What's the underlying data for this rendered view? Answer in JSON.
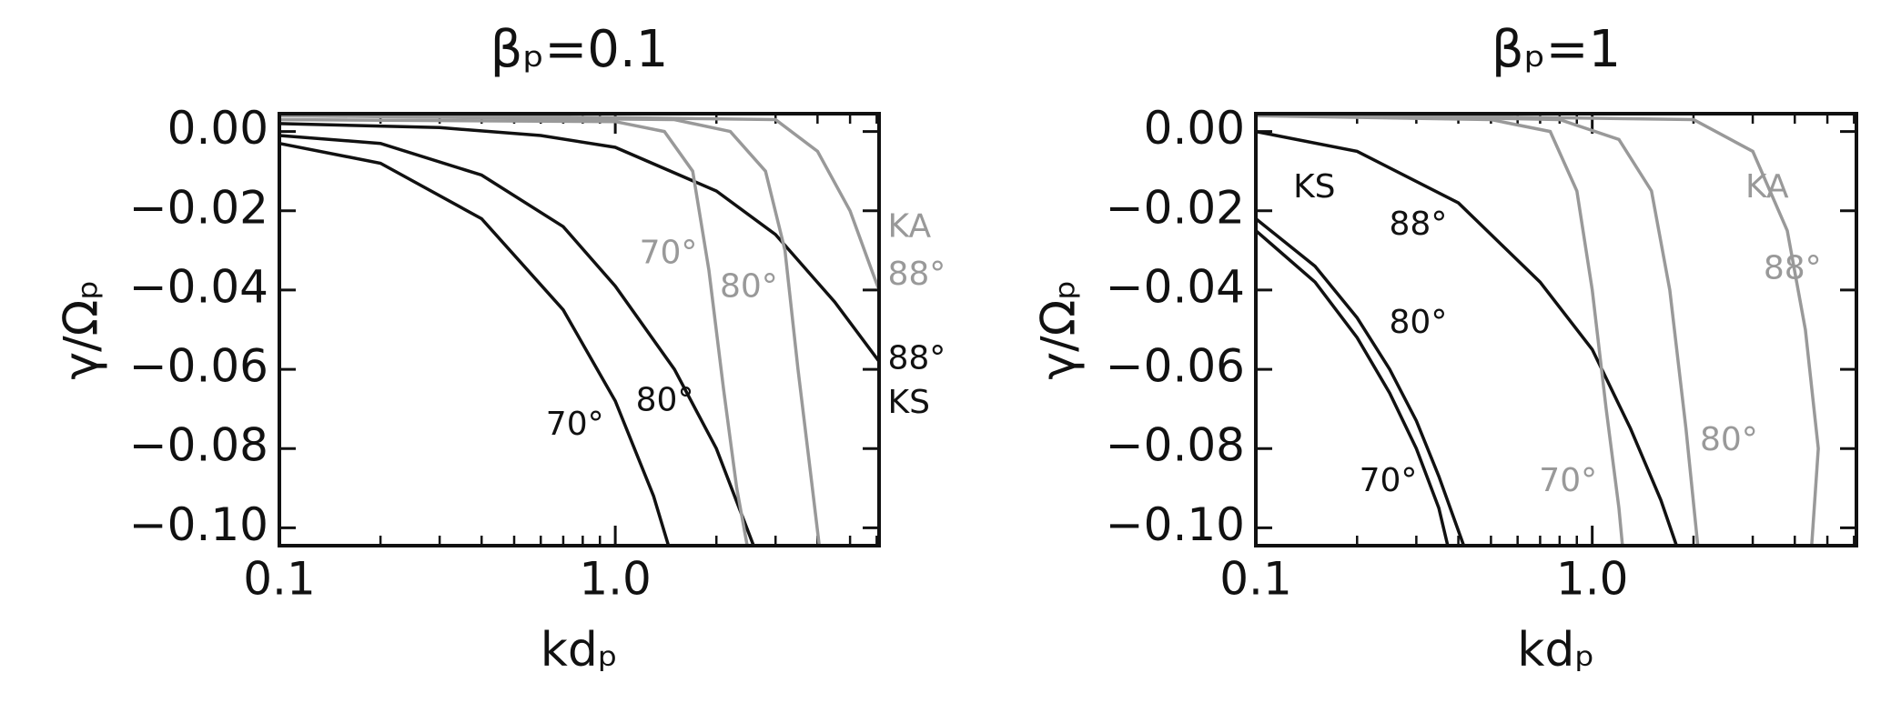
{
  "chart_data": [
    {
      "type": "line",
      "title": "βₚ=0.1",
      "x_label": "kdₚ",
      "y_label": "γ/Ωₚ",
      "xscale": "log",
      "xlim": [
        0.1,
        6.1
      ],
      "ylim": [
        -0.1045,
        0.0045
      ],
      "xticks": [
        0.1,
        {
          "value": 1,
          "label": "1.0"
        }
      ],
      "xminorticks": [
        0.2,
        0.3,
        0.4,
        0.5,
        0.6,
        0.7,
        0.8,
        0.9,
        2,
        3,
        4,
        5,
        6
      ],
      "yticks": [
        {
          "value": 0,
          "label": "0.00"
        },
        {
          "value": -0.02,
          "label": "−0.02"
        },
        {
          "value": -0.04,
          "label": "−0.04"
        },
        {
          "value": -0.06,
          "label": "−0.06"
        },
        {
          "value": -0.08,
          "label": "−0.08"
        },
        {
          "value": -0.1,
          "label": "−0.10"
        }
      ],
      "series": [
        {
          "color": "#111111",
          "x": [
            0.1,
            0.2,
            0.4,
            0.7,
            1.0,
            1.3,
            1.44
          ],
          "values": [
            -0.003,
            -0.008,
            -0.022,
            -0.045,
            -0.068,
            -0.092,
            -0.1045
          ]
        },
        {
          "color": "#111111",
          "x": [
            0.1,
            0.2,
            0.4,
            0.7,
            1.0,
            1.5,
            2.0,
            2.58
          ],
          "values": [
            -0.001,
            -0.003,
            -0.011,
            -0.024,
            -0.039,
            -0.06,
            -0.08,
            -0.1045
          ]
        },
        {
          "color": "#111111",
          "x": [
            0.1,
            0.3,
            0.6,
            1.0,
            2.0,
            3.0,
            4.5,
            6.1
          ],
          "values": [
            0.002,
            0.001,
            -0.001,
            -0.004,
            -0.015,
            -0.026,
            -0.043,
            -0.058
          ]
        },
        {
          "color": "#999999",
          "x": [
            0.1,
            1.0,
            1.4,
            1.7,
            1.9,
            2.1,
            2.3,
            2.47
          ],
          "values": [
            0.003,
            0.0025,
            0.0,
            -0.01,
            -0.035,
            -0.065,
            -0.09,
            -0.1045
          ]
        },
        {
          "color": "#999999",
          "x": [
            0.1,
            1.5,
            2.2,
            2.8,
            3.2,
            3.5,
            3.8,
            4.05
          ],
          "values": [
            0.004,
            0.003,
            0.0,
            -0.01,
            -0.03,
            -0.06,
            -0.085,
            -0.1045
          ]
        },
        {
          "color": "#999999",
          "x": [
            0.1,
            3.0,
            4.0,
            5.0,
            5.8,
            6.1
          ],
          "values": [
            0.0045,
            0.003,
            -0.005,
            -0.02,
            -0.035,
            -0.04
          ]
        }
      ],
      "annotations": [
        {
          "text": "70°",
          "color": "#111111"
        },
        {
          "text": "80°",
          "color": "#111111"
        },
        {
          "text": "88°",
          "color": "#111111"
        },
        {
          "text": "KS",
          "color": "#111111"
        },
        {
          "text": "70°",
          "color": "#999999"
        },
        {
          "text": "80°",
          "color": "#999999"
        },
        {
          "text": "KA",
          "color": "#999999"
        },
        {
          "text": "88°",
          "color": "#999999"
        }
      ]
    },
    {
      "type": "line",
      "title": "βₚ=1",
      "x_label": "kdₚ",
      "y_label": "γ/Ωₚ",
      "xscale": "log",
      "xlim": [
        0.1,
        6.1
      ],
      "ylim": [
        -0.1045,
        0.0045
      ],
      "xticks": [
        0.1,
        {
          "value": 1,
          "label": "1.0"
        }
      ],
      "xminorticks": [
        0.2,
        0.3,
        0.4,
        0.5,
        0.6,
        0.7,
        0.8,
        0.9,
        2,
        3,
        4,
        5,
        6
      ],
      "yticks": [
        {
          "value": 0,
          "label": "0.00"
        },
        {
          "value": -0.02,
          "label": "−0.02"
        },
        {
          "value": -0.04,
          "label": "−0.04"
        },
        {
          "value": -0.06,
          "label": "−0.06"
        },
        {
          "value": -0.08,
          "label": "−0.08"
        },
        {
          "value": -0.1,
          "label": "−0.10"
        }
      ],
      "series": [
        {
          "color": "#111111",
          "x": [
            0.1,
            0.15,
            0.2,
            0.25,
            0.3,
            0.35,
            0.372
          ],
          "values": [
            -0.025,
            -0.038,
            -0.052,
            -0.066,
            -0.08,
            -0.095,
            -0.1045
          ]
        },
        {
          "color": "#111111",
          "x": [
            0.1,
            0.15,
            0.2,
            0.25,
            0.3,
            0.35,
            0.415
          ],
          "values": [
            -0.022,
            -0.034,
            -0.047,
            -0.06,
            -0.073,
            -0.087,
            -0.1045
          ]
        },
        {
          "color": "#111111",
          "x": [
            0.1,
            0.2,
            0.4,
            0.7,
            1.0,
            1.3,
            1.6,
            1.78
          ],
          "values": [
            0.0,
            -0.005,
            -0.018,
            -0.038,
            -0.055,
            -0.075,
            -0.093,
            -0.1045
          ]
        },
        {
          "color": "#999999",
          "x": [
            0.1,
            0.5,
            0.75,
            0.9,
            1.0,
            1.1,
            1.2,
            1.23
          ],
          "values": [
            0.004,
            0.003,
            0.0,
            -0.015,
            -0.04,
            -0.07,
            -0.095,
            -0.1045
          ]
        },
        {
          "color": "#999999",
          "x": [
            0.1,
            0.8,
            1.2,
            1.5,
            1.7,
            1.9,
            2.06
          ],
          "values": [
            0.0045,
            0.003,
            -0.002,
            -0.015,
            -0.04,
            -0.075,
            -0.1045
          ]
        },
        {
          "color": "#999999",
          "x": [
            0.1,
            2.0,
            3.0,
            3.8,
            4.3,
            4.7,
            4.49
          ],
          "values": [
            0.0045,
            0.003,
            -0.005,
            -0.025,
            -0.05,
            -0.08,
            -0.1045
          ]
        }
      ],
      "annotations": [
        {
          "text": "KS",
          "color": "#111111"
        },
        {
          "text": "88°",
          "color": "#111111"
        },
        {
          "text": "80°",
          "color": "#111111"
        },
        {
          "text": "70°",
          "color": "#111111"
        },
        {
          "text": "70°",
          "color": "#999999"
        },
        {
          "text": "80°",
          "color": "#999999"
        },
        {
          "text": "KA",
          "color": "#999999"
        },
        {
          "text": "88°",
          "color": "#999999"
        }
      ]
    }
  ]
}
